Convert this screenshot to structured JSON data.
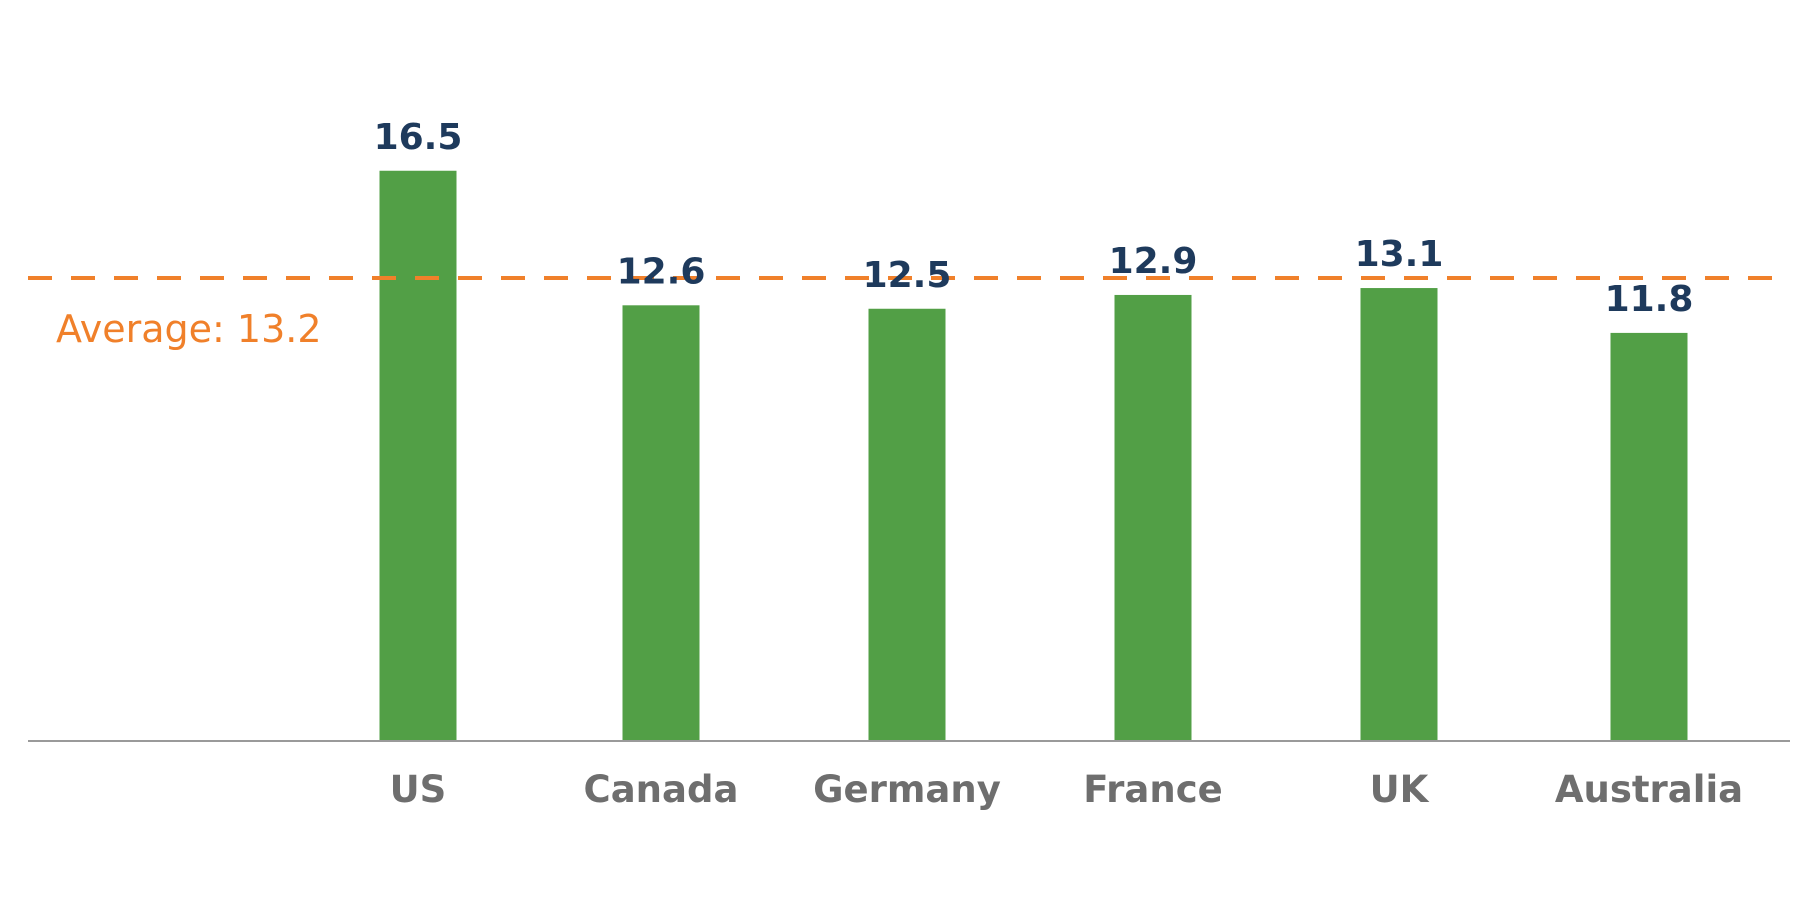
{
  "chart_data": {
    "type": "bar",
    "categories": [
      "US",
      "Canada",
      "Germany",
      "France",
      "UK",
      "Australia"
    ],
    "values": [
      16.5,
      12.6,
      12.5,
      12.9,
      13.1,
      11.8
    ],
    "average": 13.2,
    "average_label": "Average: 13.2",
    "title": "",
    "xlabel": "",
    "ylabel": "",
    "grid": false,
    "colors": {
      "bar": "#529f46",
      "average_line": "#f0802a",
      "value_label": "#1e3a5c",
      "category_label": "#6e6e6e",
      "axis": "#9a9a9a"
    }
  }
}
